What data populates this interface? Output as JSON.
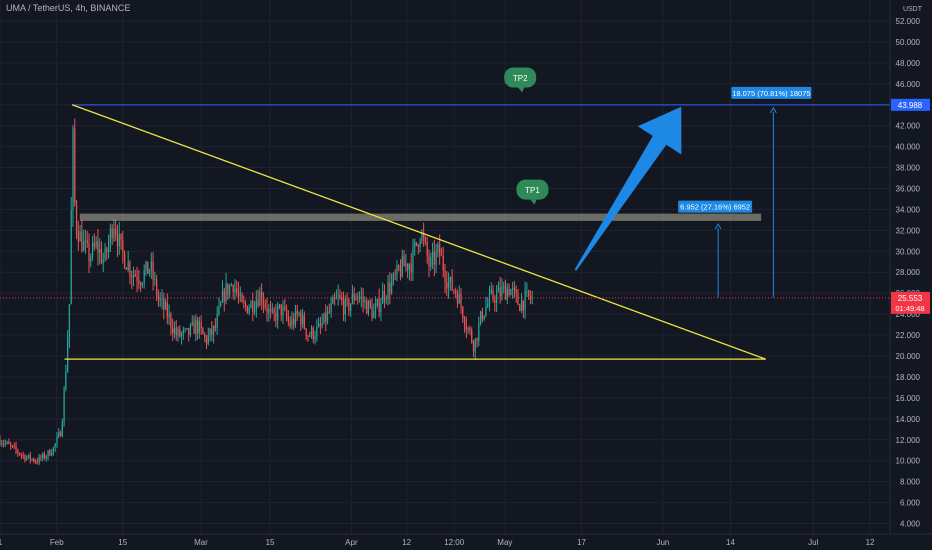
{
  "header": {
    "symbol_line": "UMA / TetherUS, 4h, BINANCE",
    "currency": "USDT"
  },
  "chart_data": {
    "type": "candlestick",
    "title": "UMA / TetherUS, 4h, BINANCE",
    "xlabel": "",
    "ylabel": "",
    "grid": true,
    "ylim": [
      3.0,
      54.0
    ],
    "y_ticks": [
      4,
      6,
      8,
      10,
      12,
      14,
      16,
      18,
      20,
      22,
      24,
      26,
      28,
      30,
      32,
      34,
      36,
      38,
      40,
      42,
      44,
      46,
      48,
      50,
      52
    ],
    "x_ticks": [
      {
        "label": "1",
        "t": 0
      },
      {
        "label": "Feb",
        "t": 3.7
      },
      {
        "label": "15",
        "t": 8.0
      },
      {
        "label": "Mar",
        "t": 13.1
      },
      {
        "label": "15",
        "t": 17.6
      },
      {
        "label": "Apr",
        "t": 22.9
      },
      {
        "label": "12",
        "t": 26.5
      },
      {
        "label": "12:00",
        "t": 29.6
      },
      {
        "label": "May",
        "t": 32.9
      },
      {
        "label": "17",
        "t": 37.9
      },
      {
        "label": "Jun",
        "t": 43.2
      },
      {
        "label": "14",
        "t": 47.6
      },
      {
        "label": "Jul",
        "t": 53.0
      },
      {
        "label": "12",
        "t": 56.7
      }
    ],
    "price_range": [
      9.5,
      44.1
    ],
    "resistance_level": 43.988,
    "support_level": 19.7,
    "last_price": 25.553,
    "countdown": "01:49:48",
    "descending_trendline": {
      "from": {
        "t": 4.7,
        "y": 44.0
      },
      "to": {
        "t": 49.9,
        "y": 19.7
      }
    },
    "tp_zone": [
      32.9,
      33.6
    ],
    "measurements": [
      {
        "label": "6.952 (27.16%) 6952",
        "from": 25.6,
        "to": 32.6
      },
      {
        "label": "18.075 (70.81%) 18075",
        "from": 25.6,
        "to": 43.7
      }
    ],
    "annotations": [
      {
        "text": "TP2",
        "t": 33.9,
        "y": 46.5
      },
      {
        "text": "TP1",
        "t": 34.7,
        "y": 35.8
      }
    ],
    "arrow": {
      "from": {
        "t": 37.5,
        "y": 28.2
      },
      "to": {
        "t": 44.4,
        "y": 43.8
      }
    },
    "colors": {
      "background": "#131722",
      "grid": "#1f2330",
      "candle_up": "#26a69a",
      "candle_down": "#ef5350",
      "trendline": "#f0e442",
      "resistance": "#2962ff",
      "price_badge": "#f23645",
      "resistance_badge": "#2962ff",
      "measure": "#1e88e5",
      "tp_label": "#2e8b57",
      "arrow": "#1e88e5",
      "zone": "#8a8a7a"
    }
  }
}
